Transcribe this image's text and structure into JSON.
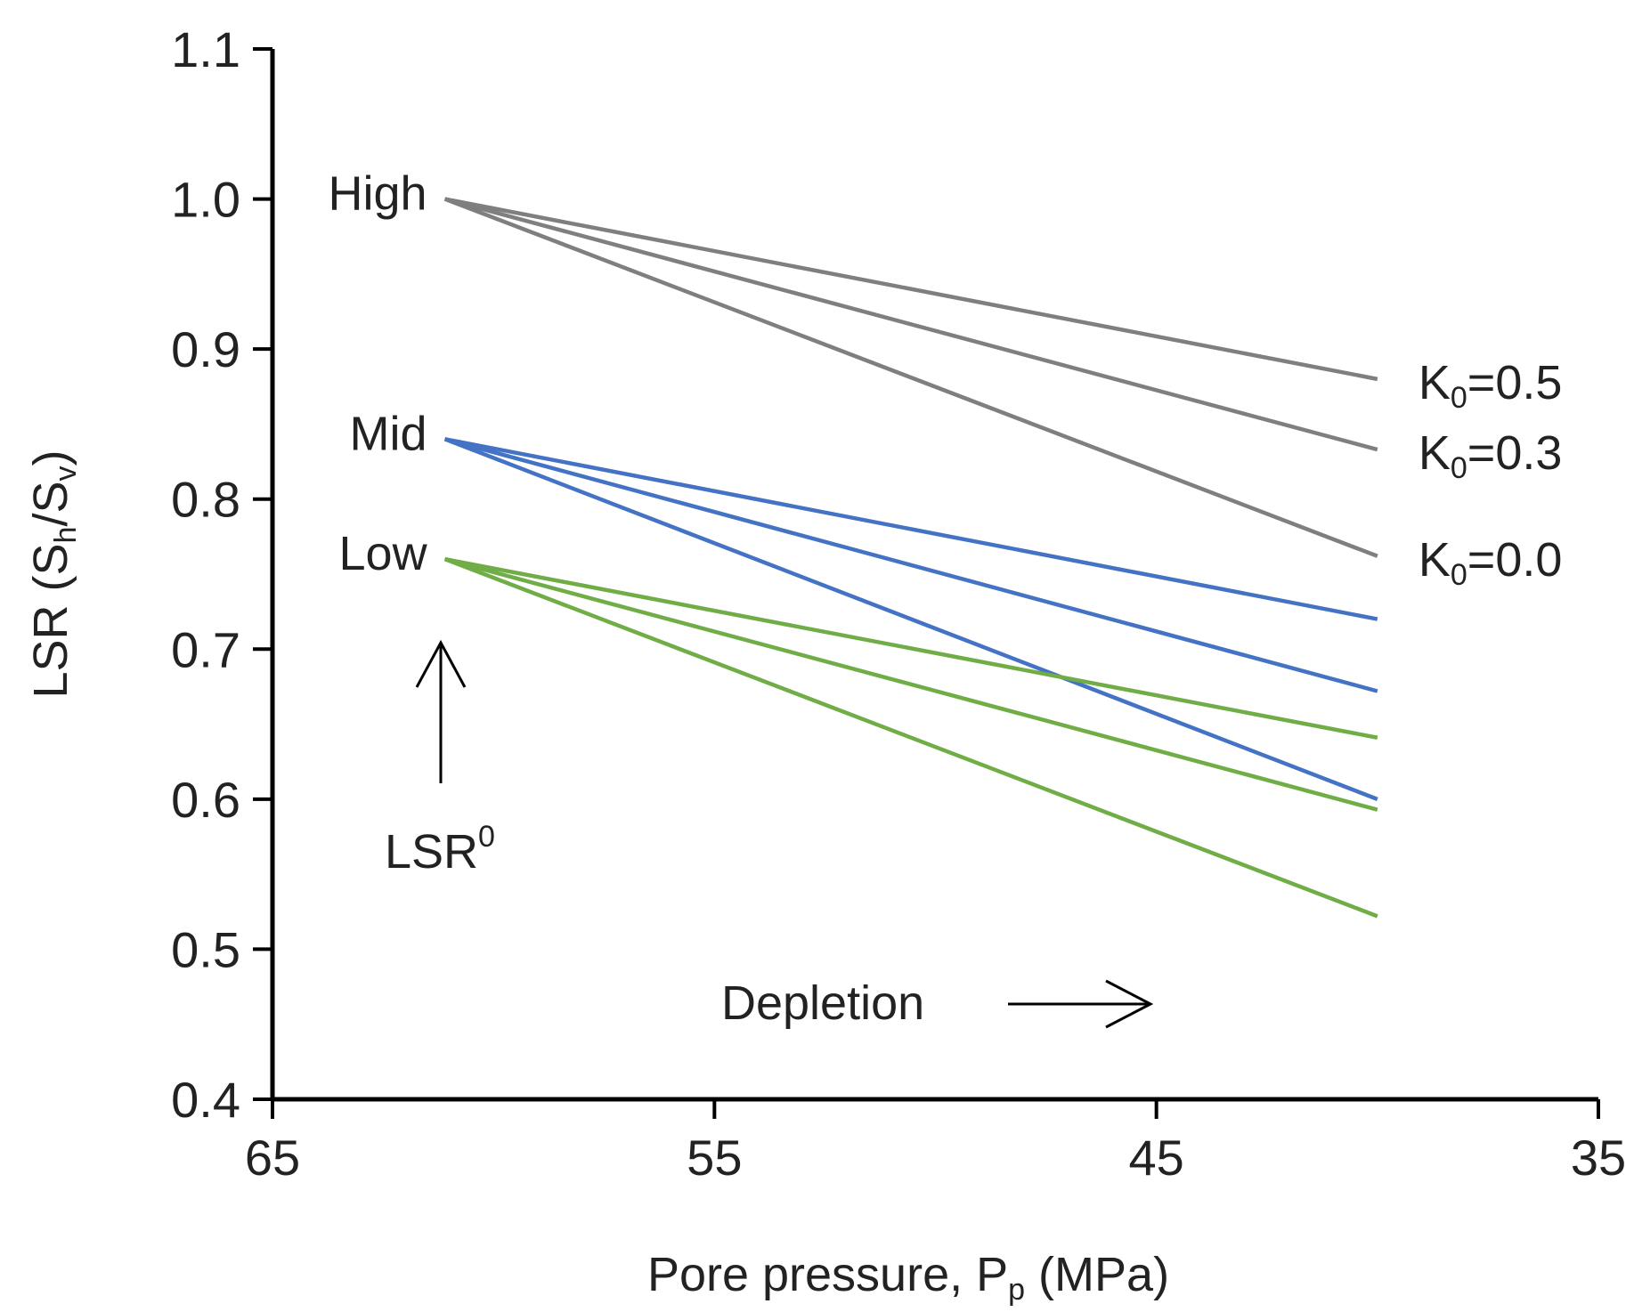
{
  "chart_data": {
    "type": "line",
    "title": "",
    "xlabel": {
      "main": "Pore pressure, P",
      "sub": "p",
      "unit": " (MPa)"
    },
    "ylabel": {
      "prefix": "LSR (S",
      "sub1": "h",
      "mid": "/S",
      "sub2": "v",
      "suffix": ")"
    },
    "xlim": [
      65,
      35
    ],
    "ylim": [
      0.4,
      1.1
    ],
    "x_ticks": [
      65,
      55,
      45,
      35
    ],
    "x_tick_labels": [
      "65",
      "55",
      "45",
      "35"
    ],
    "y_ticks": [
      0.4,
      0.5,
      0.6,
      0.7,
      0.8,
      0.9,
      1.0,
      1.1
    ],
    "y_tick_labels": [
      "0.4",
      "0.5",
      "0.6",
      "0.7",
      "0.8",
      "0.9",
      "1.0",
      "1.1"
    ],
    "grid": false,
    "colors": {
      "high": "#7f7f7f",
      "mid": "#4472c4",
      "low": "#70ad47",
      "axis": "#000000"
    },
    "series": [
      {
        "name": "High K0=0.5",
        "group": "high",
        "x": [
          61.1,
          40
        ],
        "y": [
          1.0,
          0.88
        ]
      },
      {
        "name": "High K0=0.3",
        "group": "high",
        "x": [
          61.1,
          40
        ],
        "y": [
          1.0,
          0.833
        ]
      },
      {
        "name": "High K0=0.0",
        "group": "high",
        "x": [
          61.1,
          40
        ],
        "y": [
          1.0,
          0.762
        ]
      },
      {
        "name": "Mid K0=0.5",
        "group": "mid",
        "x": [
          61.1,
          40
        ],
        "y": [
          0.84,
          0.72
        ]
      },
      {
        "name": "Mid K0=0.3",
        "group": "mid",
        "x": [
          61.1,
          40
        ],
        "y": [
          0.84,
          0.672
        ]
      },
      {
        "name": "Mid K0=0.0",
        "group": "mid",
        "x": [
          61.1,
          40
        ],
        "y": [
          0.84,
          0.6
        ]
      },
      {
        "name": "Low K0=0.5",
        "group": "low",
        "x": [
          61.1,
          40
        ],
        "y": [
          0.76,
          0.641
        ]
      },
      {
        "name": "Low K0=0.3",
        "group": "low",
        "x": [
          61.1,
          40
        ],
        "y": [
          0.76,
          0.593
        ]
      },
      {
        "name": "Low K0=0.0",
        "group": "low",
        "x": [
          61.1,
          40
        ],
        "y": [
          0.76,
          0.522
        ]
      }
    ],
    "annotations": {
      "start_labels": [
        {
          "text": "High",
          "y": 1.0
        },
        {
          "text": "Mid",
          "y": 0.84
        },
        {
          "text": "Low",
          "y": 0.76
        }
      ],
      "k_labels": [
        {
          "prefix": "K",
          "sub": "0",
          "suffix": "=0.5",
          "y": 0.88
        },
        {
          "prefix": "K",
          "sub": "0",
          "suffix": "=0.3",
          "y": 0.833
        },
        {
          "prefix": "K",
          "sub": "0",
          "suffix": "=0.0",
          "y": 0.762
        }
      ],
      "lsr0": {
        "text": "LSR",
        "sup": "0"
      },
      "depletion": {
        "text": "Depletion"
      }
    }
  }
}
